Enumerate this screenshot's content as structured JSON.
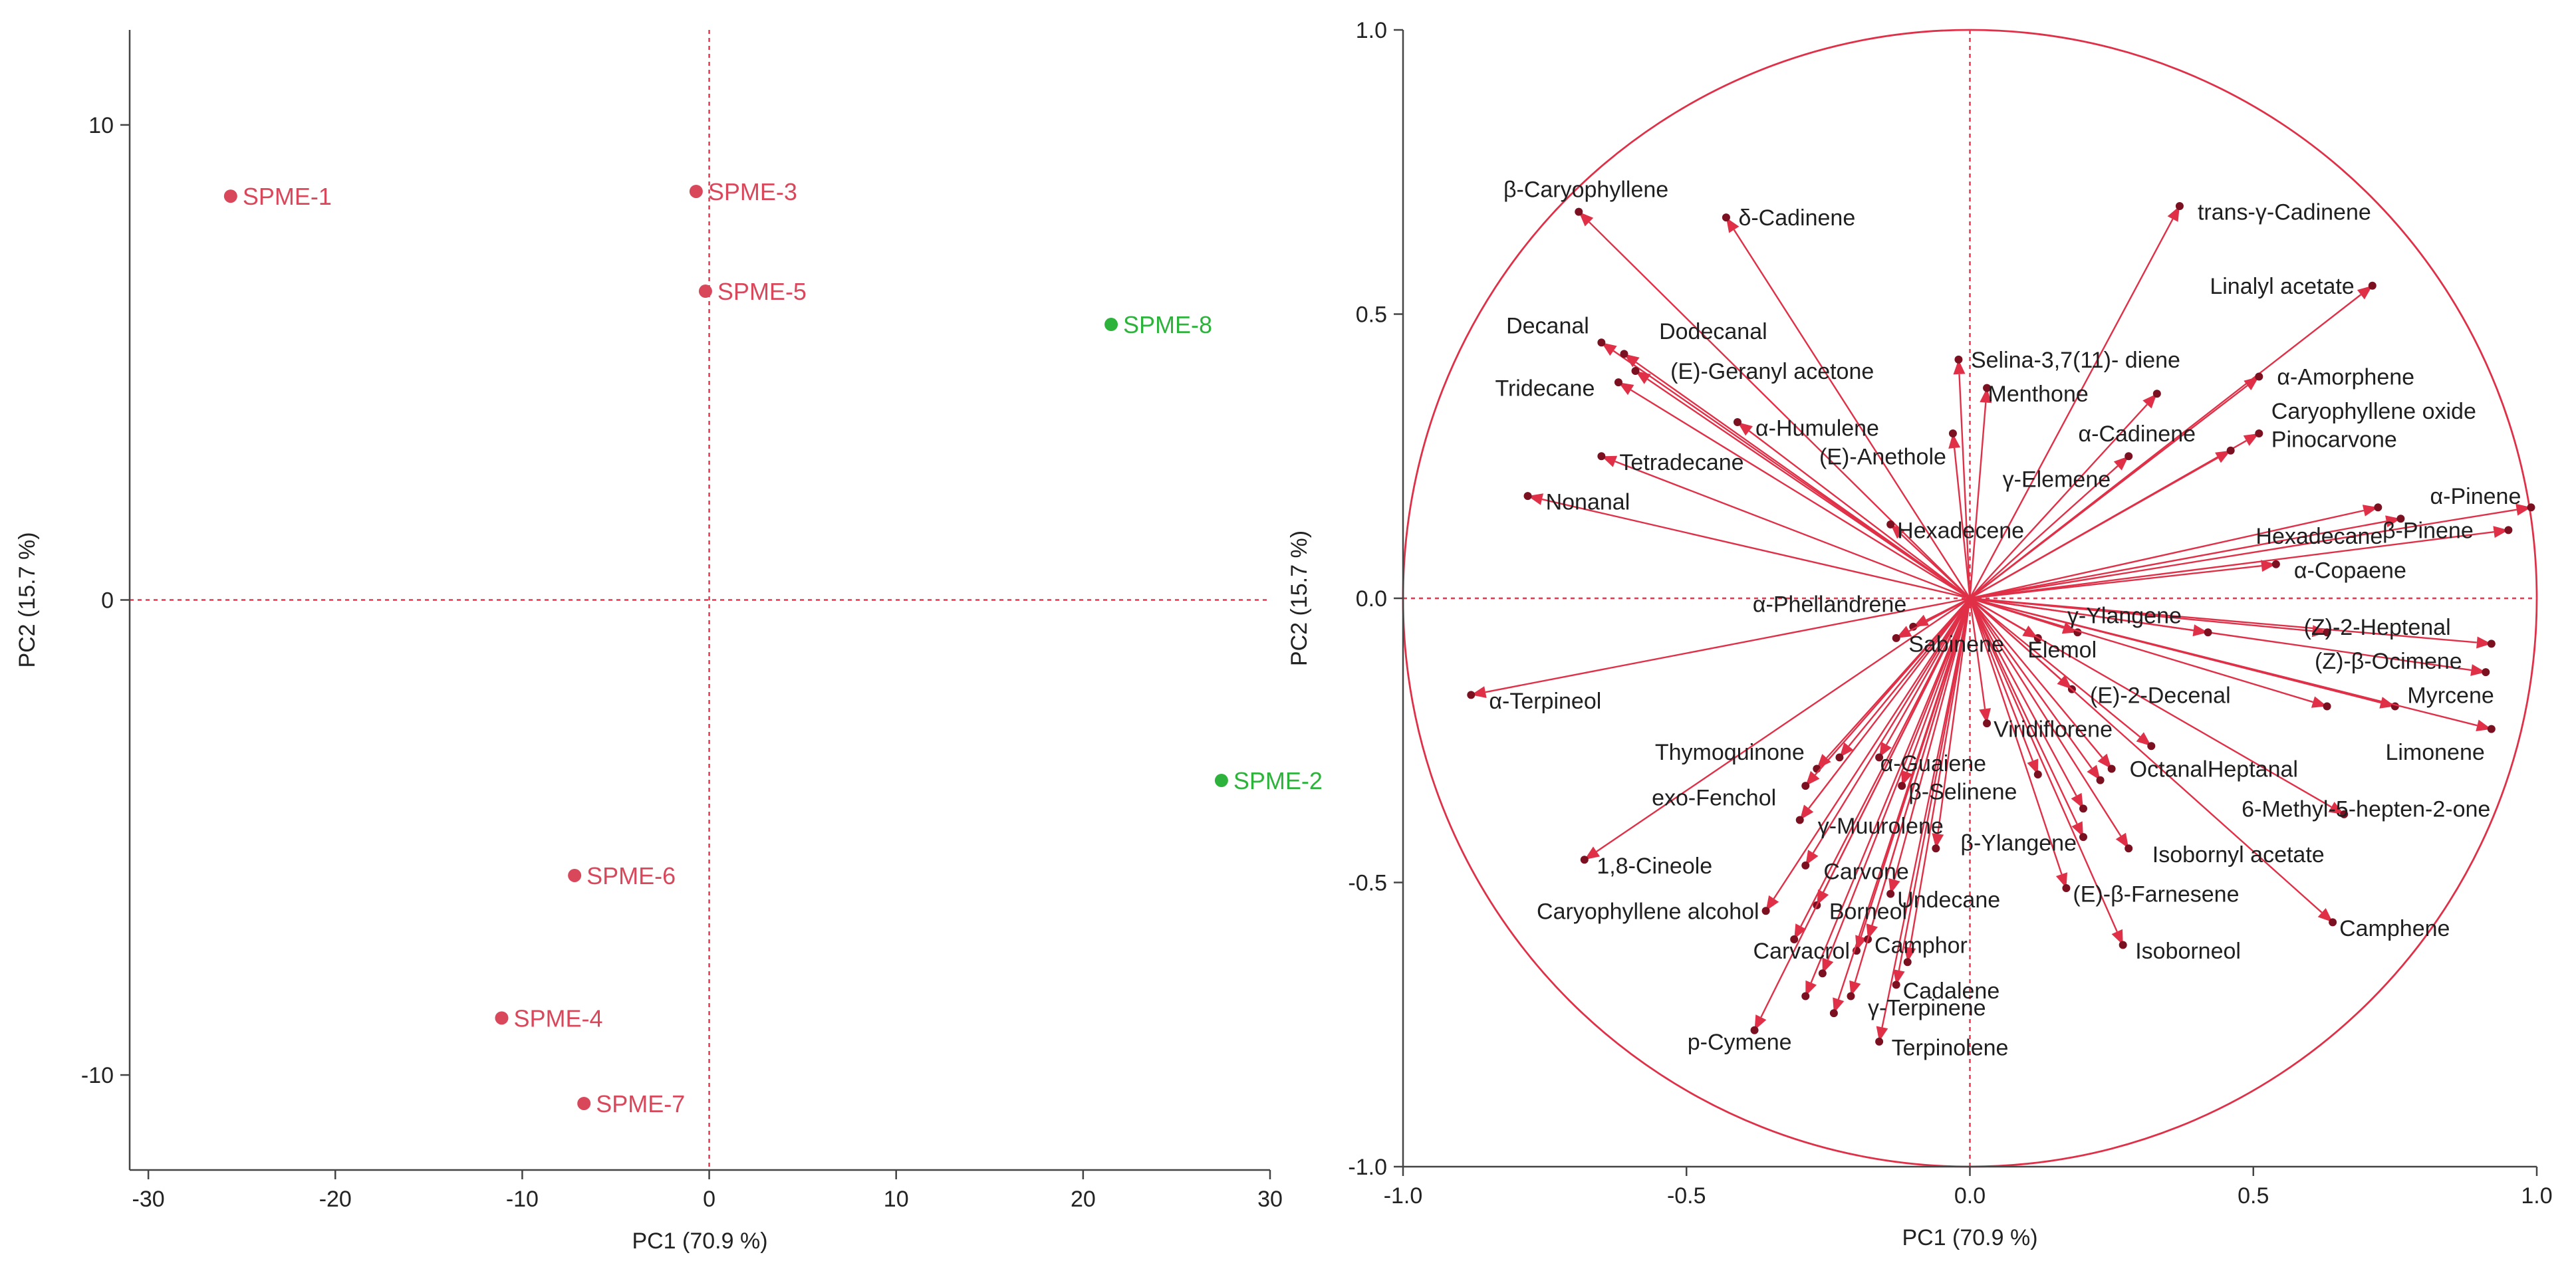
{
  "chart_data": [
    {
      "type": "scatter",
      "title": "",
      "xlabel": "PC1 (70.9 %)",
      "ylabel": "PC2 (15.7 %)",
      "xlim": [
        -31,
        30
      ],
      "ylim": [
        -12,
        12
      ],
      "xticks": [
        -30,
        -20,
        -10,
        0,
        10,
        20,
        30
      ],
      "yticks": [
        -10,
        0,
        10
      ],
      "colors": {
        "group_a": "#d9475b",
        "group_b": "#2db33c",
        "refline": "#e8374f",
        "axis": "#444444"
      },
      "points": [
        {
          "label": "SPME-1",
          "x": -25.6,
          "y": 8.5,
          "group": "group_a"
        },
        {
          "label": "SPME-3",
          "x": -0.7,
          "y": 8.6,
          "group": "group_a"
        },
        {
          "label": "SPME-5",
          "x": -0.2,
          "y": 6.5,
          "group": "group_a"
        },
        {
          "label": "SPME-8",
          "x": 21.5,
          "y": 5.8,
          "group": "group_b"
        },
        {
          "label": "SPME-2",
          "x": 27.4,
          "y": -3.8,
          "group": "group_b"
        },
        {
          "label": "SPME-6",
          "x": -7.2,
          "y": -5.8,
          "group": "group_a"
        },
        {
          "label": "SPME-4",
          "x": -11.1,
          "y": -8.8,
          "group": "group_a"
        },
        {
          "label": "SPME-7",
          "x": -6.7,
          "y": -10.6,
          "group": "group_a"
        }
      ]
    },
    {
      "type": "biplot-loadings",
      "title": "",
      "xlabel": "PC1 (70.9 %)",
      "ylabel": "PC2 (15.7 %)",
      "xlim": [
        -1.0,
        1.0
      ],
      "ylim": [
        -1.0,
        1.0
      ],
      "xticks": [
        -1.0,
        -0.5,
        0.0,
        0.5,
        1.0
      ],
      "yticks": [
        -1.0,
        -0.5,
        0.0,
        0.5,
        1.0
      ],
      "xtick_labels": [
        "-1.0",
        "-0.5",
        "0.0",
        "0.5",
        "1.0"
      ],
      "ytick_labels": [
        "-1.0",
        "-0.5",
        "0.0",
        "0.5",
        "1.0"
      ],
      "colors": {
        "vector": "#e03048",
        "circle": "#e03048",
        "refline": "#e8374f",
        "label": "#1f1f1f"
      },
      "loadings": [
        {
          "label": "β-Caryophyllene",
          "x": -0.69,
          "y": 0.68,
          "anchor": "end",
          "dx": 0.17,
          "dy": 0.04
        },
        {
          "label": "δ-Cadinene",
          "x": -0.43,
          "y": 0.67,
          "anchor": "start",
          "dx": 0.01,
          "dy": 0.0
        },
        {
          "label": "trans-γ-Cadinene",
          "x": 0.37,
          "y": 0.69,
          "anchor": "start",
          "dx": 0.02,
          "dy": -0.01
        },
        {
          "label": "Linalyl acetate",
          "x": 0.71,
          "y": 0.55,
          "anchor": "end",
          "dx": -0.02,
          "dy": 0.0
        },
        {
          "label": "Decanal",
          "x": -0.65,
          "y": 0.45,
          "anchor": "end",
          "dx": -0.01,
          "dy": 0.03
        },
        {
          "label": "Dodecanal",
          "x": -0.61,
          "y": 0.43,
          "anchor": "start",
          "dx": 0.05,
          "dy": 0.04
        },
        {
          "label": "(E)-Geranyl acetone",
          "x": -0.59,
          "y": 0.4,
          "anchor": "start",
          "dx": 0.05,
          "dy": 0.0
        },
        {
          "label": "Tridecane",
          "x": -0.62,
          "y": 0.38,
          "anchor": "end",
          "dx": -0.03,
          "dy": -0.01
        },
        {
          "label": "Selina-3,7(11)- diene",
          "x": -0.02,
          "y": 0.42,
          "anchor": "start",
          "dx": 0.01,
          "dy": 0.0
        },
        {
          "label": "α-Amorphene",
          "x": 0.51,
          "y": 0.39,
          "anchor": "start",
          "dx": 0.02,
          "dy": 0.0
        },
        {
          "label": "Menthone",
          "x": 0.03,
          "y": 0.37,
          "anchor": "start",
          "dx": -0.01,
          "dy": -0.01
        },
        {
          "label": "α-Humulene",
          "x": -0.41,
          "y": 0.31,
          "anchor": "start",
          "dx": 0.02,
          "dy": -0.01
        },
        {
          "label": "α-Cadinene",
          "x": 0.33,
          "y": 0.36,
          "anchor": "end",
          "dx": 0.08,
          "dy": -0.07
        },
        {
          "label": "Caryophyllene oxide",
          "x": 0.51,
          "y": 0.29,
          "anchor": "start",
          "dx": 0.01,
          "dy": 0.04
        },
        {
          "label": "Pinocarvone",
          "x": 0.46,
          "y": 0.26,
          "anchor": "start",
          "dx": 0.06,
          "dy": 0.02
        },
        {
          "label": "(E)-Anethole",
          "x": -0.03,
          "y": 0.29,
          "anchor": "end",
          "dx": 0.0,
          "dy": -0.04
        },
        {
          "label": "γ-Elemene",
          "x": 0.28,
          "y": 0.25,
          "anchor": "end",
          "dx": -0.02,
          "dy": -0.04
        },
        {
          "label": "Tetradecane",
          "x": -0.65,
          "y": 0.25,
          "anchor": "start",
          "dx": 0.02,
          "dy": -0.01
        },
        {
          "label": "Nonanal",
          "x": -0.78,
          "y": 0.18,
          "anchor": "start",
          "dx": 0.02,
          "dy": -0.01
        },
        {
          "label": "α-Pinene",
          "x": 0.72,
          "y": 0.16,
          "anchor": "start",
          "dx": 0.08,
          "dy": 0.02
        },
        {
          "label": "Hexadecane",
          "x": 0.76,
          "y": 0.14,
          "anchor": "end",
          "dx": -0.02,
          "dy": -0.03
        },
        {
          "label": "β-Pinene",
          "x": 0.95,
          "y": 0.12,
          "anchor": "end",
          "dx": -0.05,
          "dy": 0.0
        },
        {
          "label": "Hexadecene",
          "x": -0.14,
          "y": 0.13,
          "anchor": "start",
          "dx": 0.0,
          "dy": -0.01
        },
        {
          "label": "α-Copaene",
          "x": 0.54,
          "y": 0.06,
          "anchor": "start",
          "dx": 0.02,
          "dy": -0.01
        },
        {
          "label": "α-Phellandrene",
          "x": -0.1,
          "y": -0.05,
          "anchor": "end",
          "dx": 0.0,
          "dy": 0.04
        },
        {
          "label": "Sabinene",
          "x": -0.13,
          "y": -0.07,
          "anchor": "start",
          "dx": 0.01,
          "dy": -0.01
        },
        {
          "label": "γ-Ylangene",
          "x": 0.19,
          "y": -0.06,
          "anchor": "start",
          "dx": -0.03,
          "dy": 0.03
        },
        {
          "label": "Elemol",
          "x": 0.12,
          "y": -0.07,
          "anchor": "start",
          "dx": -0.03,
          "dy": -0.02
        },
        {
          "label": "(Z)-2-Heptenal",
          "x": 0.92,
          "y": -0.08,
          "anchor": "end",
          "dx": -0.06,
          "dy": 0.03
        },
        {
          "label": "(Z)-β-Ocimene",
          "x": 0.91,
          "y": -0.13,
          "anchor": "end",
          "dx": -0.03,
          "dy": 0.02
        },
        {
          "label": "(E)-2-Decenal",
          "x": 0.18,
          "y": -0.16,
          "anchor": "start",
          "dx": 0.02,
          "dy": -0.01
        },
        {
          "label": "Myrcene",
          "x": 0.75,
          "y": -0.19,
          "anchor": "start",
          "dx": 0.01,
          "dy": 0.02
        },
        {
          "label": "α-Terpineol",
          "x": -0.88,
          "y": -0.17,
          "anchor": "start",
          "dx": 0.02,
          "dy": -0.01
        },
        {
          "label": "Viridiflorene",
          "x": 0.03,
          "y": -0.22,
          "anchor": "start",
          "dx": 0.0,
          "dy": -0.01
        },
        {
          "label": "Limonene",
          "x": 0.92,
          "y": -0.23,
          "anchor": "end",
          "dx": 0.0,
          "dy": -0.04
        },
        {
          "label": "Thymoquinone",
          "x": -0.27,
          "y": -0.3,
          "anchor": "end",
          "dx": -0.01,
          "dy": 0.03
        },
        {
          "label": "α-Guaiene",
          "x": -0.16,
          "y": -0.28,
          "anchor": "start",
          "dx": -0.01,
          "dy": -0.01
        },
        {
          "label": "OctanalHeptanal",
          "x": 0.25,
          "y": -0.3,
          "anchor": "start",
          "dx": 0.02,
          "dy": 0.0
        },
        {
          "label": "β-Selinene",
          "x": -0.12,
          "y": -0.33,
          "anchor": "start",
          "dx": 0.0,
          "dy": -0.01
        },
        {
          "label": "exo-Fenchol",
          "x": -0.29,
          "y": -0.33,
          "anchor": "end",
          "dx": -0.04,
          "dy": -0.02
        },
        {
          "label": "6-Methyl-5-hepten-2-one",
          "x": 0.66,
          "y": -0.38,
          "anchor": "end",
          "dx": 0.27,
          "dy": 0.01
        },
        {
          "label": "Isobornyl acetate",
          "x": 0.28,
          "y": -0.44,
          "anchor": "start",
          "dx": 0.03,
          "dy": -0.01
        },
        {
          "label": "γ-Muurolene",
          "x": -0.3,
          "y": -0.39,
          "anchor": "start",
          "dx": 0.02,
          "dy": -0.01
        },
        {
          "label": "β-Ylangene",
          "x": 0.2,
          "y": -0.42,
          "anchor": "end",
          "dx": 0.0,
          "dy": -0.01
        },
        {
          "label": "1,8-Cineole",
          "x": -0.68,
          "y": -0.46,
          "anchor": "start",
          "dx": 0.01,
          "dy": -0.01
        },
        {
          "label": "Carvone",
          "x": -0.29,
          "y": -0.47,
          "anchor": "start",
          "dx": 0.02,
          "dy": -0.01
        },
        {
          "label": "(E)-β-Farnesene",
          "x": 0.17,
          "y": -0.51,
          "anchor": "start",
          "dx": 0.0,
          "dy": -0.01
        },
        {
          "label": "Caryophyllene alcohol",
          "x": -0.36,
          "y": -0.55,
          "anchor": "end",
          "dx": 0.0,
          "dy": 0.0
        },
        {
          "label": "Borneol",
          "x": -0.27,
          "y": -0.54,
          "anchor": "start",
          "dx": 0.01,
          "dy": -0.01
        },
        {
          "label": "Undecane",
          "x": -0.14,
          "y": -0.52,
          "anchor": "start",
          "dx": 0.0,
          "dy": -0.01
        },
        {
          "label": "Camphene",
          "x": 0.64,
          "y": -0.57,
          "anchor": "start",
          "dx": 0.0,
          "dy": -0.01
        },
        {
          "label": "Carvacrol",
          "x": -0.2,
          "y": -0.62,
          "anchor": "end",
          "dx": 0.0,
          "dy": 0.0
        },
        {
          "label": "Camphor",
          "x": -0.18,
          "y": -0.6,
          "anchor": "start",
          "dx": 0.0,
          "dy": -0.01
        },
        {
          "label": "Isoborneol",
          "x": 0.27,
          "y": -0.61,
          "anchor": "start",
          "dx": 0.01,
          "dy": -0.01
        },
        {
          "label": "Cadalene",
          "x": -0.13,
          "y": -0.68,
          "anchor": "start",
          "dx": 0.0,
          "dy": -0.01
        },
        {
          "label": "γ-Terpinene",
          "x": -0.24,
          "y": -0.73,
          "anchor": "end",
          "dx": 0.28,
          "dy": 0.01
        },
        {
          "label": "p-Cymene",
          "x": -0.38,
          "y": -0.76,
          "anchor": "start",
          "dx": -0.13,
          "dy": -0.02
        },
        {
          "label": "Terpinolene",
          "x": -0.16,
          "y": -0.78,
          "anchor": "start",
          "dx": 0.01,
          "dy": -0.01
        },
        {
          "label": "",
          "x": -0.31,
          "y": -0.6,
          "anchor": "start",
          "dx": 0,
          "dy": 0
        },
        {
          "label": "",
          "x": -0.21,
          "y": -0.7,
          "anchor": "start",
          "dx": 0,
          "dy": 0
        },
        {
          "label": "",
          "x": -0.26,
          "y": -0.66,
          "anchor": "start",
          "dx": 0,
          "dy": 0
        },
        {
          "label": "",
          "x": -0.11,
          "y": -0.64,
          "anchor": "start",
          "dx": 0,
          "dy": 0
        },
        {
          "label": "",
          "x": -0.06,
          "y": -0.44,
          "anchor": "start",
          "dx": 0,
          "dy": 0
        },
        {
          "label": "",
          "x": 0.12,
          "y": -0.31,
          "anchor": "start",
          "dx": 0,
          "dy": 0
        },
        {
          "label": "",
          "x": 0.42,
          "y": -0.06,
          "anchor": "start",
          "dx": 0,
          "dy": 0
        },
        {
          "label": "",
          "x": 0.63,
          "y": -0.06,
          "anchor": "start",
          "dx": 0,
          "dy": 0
        },
        {
          "label": "",
          "x": 0.63,
          "y": -0.19,
          "anchor": "start",
          "dx": 0,
          "dy": 0
        },
        {
          "label": "",
          "x": 0.32,
          "y": -0.26,
          "anchor": "start",
          "dx": 0,
          "dy": 0
        },
        {
          "label": "",
          "x": 0.2,
          "y": -0.37,
          "anchor": "start",
          "dx": 0,
          "dy": 0
        },
        {
          "label": "",
          "x": 0.23,
          "y": -0.32,
          "anchor": "start",
          "dx": 0,
          "dy": 0
        },
        {
          "label": "",
          "x": 0.99,
          "y": 0.16,
          "anchor": "start",
          "dx": 0,
          "dy": 0
        },
        {
          "label": "",
          "x": -0.23,
          "y": -0.28,
          "anchor": "start",
          "dx": 0,
          "dy": 0
        },
        {
          "label": "",
          "x": -0.29,
          "y": -0.7,
          "anchor": "start",
          "dx": 0,
          "dy": 0
        }
      ]
    }
  ]
}
